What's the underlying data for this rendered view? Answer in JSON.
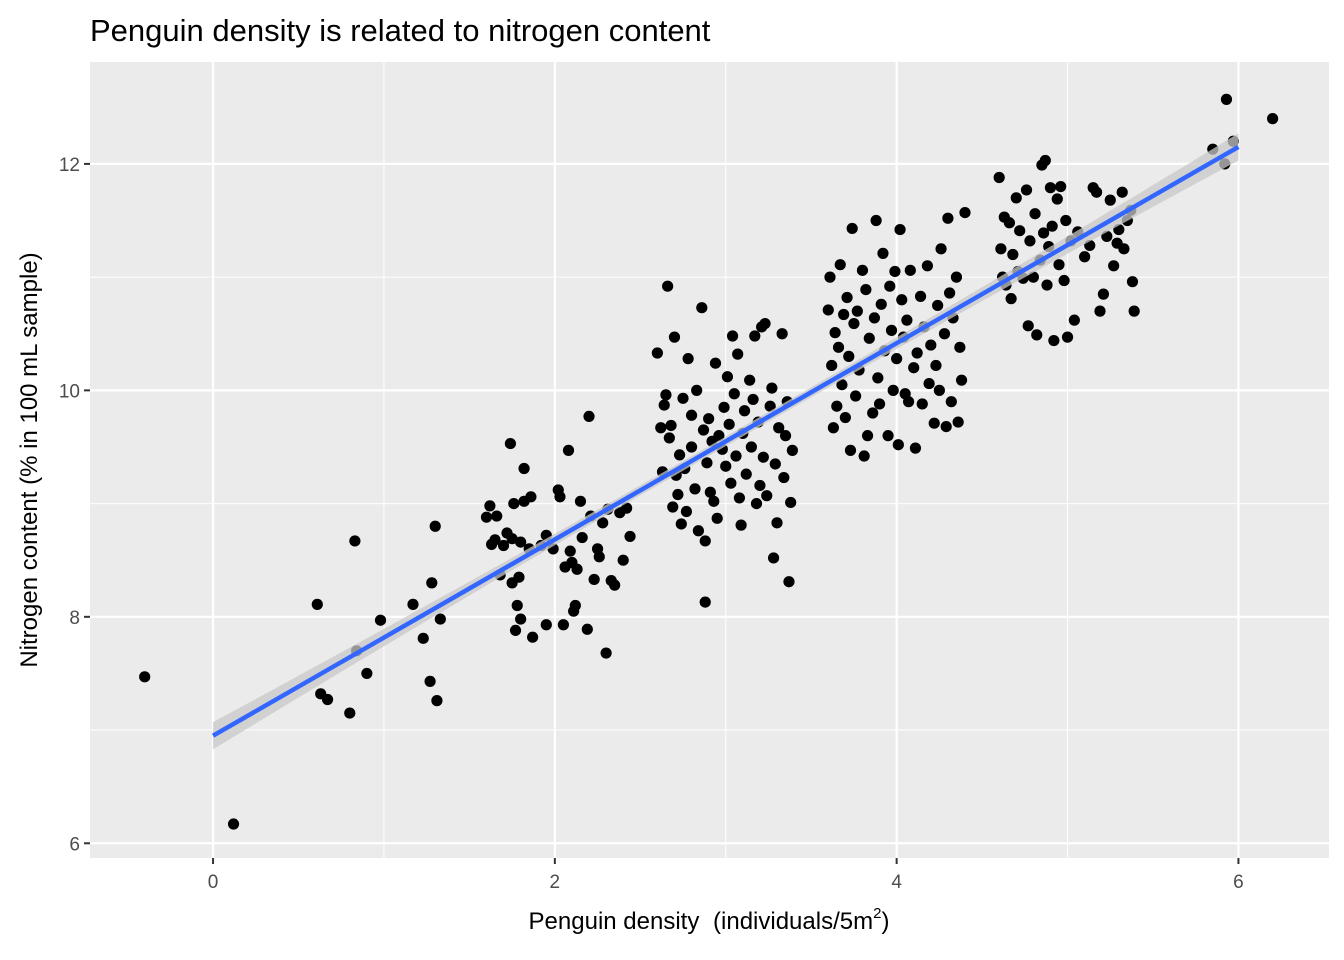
{
  "chart_data": {
    "type": "scatter",
    "title": "Penguin density is related to nitrogen content",
    "xlabel": "Penguin density",
    "xlabel_unit": "(individuals/5m",
    "xlabel_sup": "2",
    "xlabel_close": ")",
    "ylabel": "Nitrogen content (% in 100 mL sample)",
    "xlim": [
      -0.72,
      6.53
    ],
    "ylim": [
      5.87,
      12.9
    ],
    "x_ticks": [
      0,
      2,
      4,
      6
    ],
    "x_tick_labels": [
      "0",
      "2",
      "4",
      "6"
    ],
    "y_ticks": [
      6,
      8,
      10,
      12
    ],
    "y_tick_labels": [
      "6",
      "8",
      "10",
      "12"
    ],
    "grid": true,
    "panel_color": "#ebebeb",
    "point_color": "#000000",
    "line_color": "#3366ff",
    "ribbon_color": "#c8c8c8",
    "fit_line": {
      "method": "linear",
      "x": [
        0,
        6
      ],
      "y": [
        6.95,
        12.15
      ],
      "ci_halfwidth": 0.12
    },
    "series": [
      {
        "values": [
          [
            -0.4,
            7.47
          ],
          [
            0.12,
            6.17
          ],
          [
            0.61,
            8.11
          ],
          [
            0.63,
            7.32
          ],
          [
            0.67,
            7.27
          ],
          [
            0.8,
            7.15
          ],
          [
            0.83,
            8.67
          ],
          [
            0.84,
            7.7
          ],
          [
            0.9,
            7.5
          ],
          [
            0.98,
            7.97
          ],
          [
            1.17,
            8.11
          ],
          [
            1.23,
            7.81
          ],
          [
            1.27,
            7.43
          ],
          [
            1.28,
            8.3
          ],
          [
            1.3,
            8.8
          ],
          [
            1.31,
            7.26
          ],
          [
            1.33,
            7.98
          ],
          [
            1.6,
            8.88
          ],
          [
            1.62,
            8.98
          ],
          [
            1.63,
            8.64
          ],
          [
            1.65,
            8.68
          ],
          [
            1.66,
            8.89
          ],
          [
            1.68,
            8.37
          ],
          [
            1.7,
            8.63
          ],
          [
            1.72,
            8.74
          ],
          [
            1.74,
            9.53
          ],
          [
            1.75,
            8.69
          ],
          [
            1.75,
            8.3
          ],
          [
            1.76,
            9.0
          ],
          [
            1.77,
            7.88
          ],
          [
            1.78,
            8.1
          ],
          [
            1.79,
            8.35
          ],
          [
            1.8,
            8.66
          ],
          [
            1.8,
            7.98
          ],
          [
            1.82,
            9.31
          ],
          [
            1.82,
            9.02
          ],
          [
            1.85,
            8.6
          ],
          [
            1.86,
            9.06
          ],
          [
            1.87,
            7.82
          ],
          [
            1.92,
            8.63
          ],
          [
            1.95,
            7.93
          ],
          [
            1.95,
            8.72
          ],
          [
            1.99,
            8.6
          ],
          [
            2.02,
            9.12
          ],
          [
            2.03,
            9.06
          ],
          [
            2.05,
            7.93
          ],
          [
            2.06,
            8.44
          ],
          [
            2.08,
            9.47
          ],
          [
            2.09,
            8.58
          ],
          [
            2.1,
            8.48
          ],
          [
            2.11,
            8.05
          ],
          [
            2.12,
            8.1
          ],
          [
            2.13,
            8.42
          ],
          [
            2.15,
            9.02
          ],
          [
            2.16,
            8.7
          ],
          [
            2.19,
            7.89
          ],
          [
            2.2,
            9.77
          ],
          [
            2.21,
            8.89
          ],
          [
            2.23,
            8.33
          ],
          [
            2.25,
            8.6
          ],
          [
            2.26,
            8.53
          ],
          [
            2.28,
            8.83
          ],
          [
            2.3,
            7.68
          ],
          [
            2.31,
            8.95
          ],
          [
            2.33,
            8.32
          ],
          [
            2.35,
            8.28
          ],
          [
            2.38,
            8.92
          ],
          [
            2.4,
            8.5
          ],
          [
            2.42,
            8.96
          ],
          [
            2.44,
            8.71
          ],
          [
            2.6,
            10.33
          ],
          [
            2.62,
            9.67
          ],
          [
            2.63,
            9.28
          ],
          [
            2.64,
            9.87
          ],
          [
            2.65,
            9.96
          ],
          [
            2.66,
            10.92
          ],
          [
            2.67,
            9.58
          ],
          [
            2.68,
            9.69
          ],
          [
            2.69,
            8.97
          ],
          [
            2.7,
            10.47
          ],
          [
            2.71,
            9.25
          ],
          [
            2.72,
            9.08
          ],
          [
            2.73,
            9.43
          ],
          [
            2.74,
            8.82
          ],
          [
            2.75,
            9.93
          ],
          [
            2.76,
            9.31
          ],
          [
            2.77,
            8.93
          ],
          [
            2.78,
            10.28
          ],
          [
            2.8,
            9.5
          ],
          [
            2.8,
            9.78
          ],
          [
            2.82,
            9.13
          ],
          [
            2.83,
            10.0
          ],
          [
            2.84,
            8.76
          ],
          [
            2.86,
            10.73
          ],
          [
            2.87,
            9.65
          ],
          [
            2.88,
            8.67
          ],
          [
            2.88,
            8.13
          ],
          [
            2.89,
            9.36
          ],
          [
            2.9,
            9.75
          ],
          [
            2.91,
            9.1
          ],
          [
            2.92,
            9.55
          ],
          [
            2.93,
            9.02
          ],
          [
            2.94,
            10.24
          ],
          [
            2.95,
            8.87
          ],
          [
            2.96,
            9.6
          ],
          [
            2.98,
            9.48
          ],
          [
            2.99,
            9.85
          ],
          [
            3.0,
            9.33
          ],
          [
            3.01,
            10.12
          ],
          [
            3.02,
            9.7
          ],
          [
            3.03,
            9.18
          ],
          [
            3.04,
            10.48
          ],
          [
            3.05,
            9.97
          ],
          [
            3.06,
            9.42
          ],
          [
            3.07,
            10.32
          ],
          [
            3.08,
            9.05
          ],
          [
            3.09,
            8.81
          ],
          [
            3.1,
            9.62
          ],
          [
            3.11,
            9.82
          ],
          [
            3.12,
            9.26
          ],
          [
            3.14,
            10.09
          ],
          [
            3.15,
            9.5
          ],
          [
            3.16,
            9.92
          ],
          [
            3.17,
            10.48
          ],
          [
            3.18,
            9.0
          ],
          [
            3.19,
            9.72
          ],
          [
            3.2,
            9.16
          ],
          [
            3.21,
            10.56
          ],
          [
            3.22,
            9.41
          ],
          [
            3.23,
            10.59
          ],
          [
            3.24,
            9.07
          ],
          [
            3.26,
            9.86
          ],
          [
            3.27,
            10.02
          ],
          [
            3.28,
            8.52
          ],
          [
            3.29,
            9.35
          ],
          [
            3.3,
            8.83
          ],
          [
            3.31,
            9.67
          ],
          [
            3.33,
            10.5
          ],
          [
            3.34,
            9.23
          ],
          [
            3.35,
            9.6
          ],
          [
            3.36,
            9.9
          ],
          [
            3.37,
            8.31
          ],
          [
            3.38,
            9.01
          ],
          [
            3.39,
            9.47
          ],
          [
            3.6,
            10.71
          ],
          [
            3.61,
            11.0
          ],
          [
            3.62,
            10.22
          ],
          [
            3.63,
            9.67
          ],
          [
            3.64,
            10.51
          ],
          [
            3.65,
            9.86
          ],
          [
            3.66,
            10.38
          ],
          [
            3.67,
            11.11
          ],
          [
            3.68,
            10.05
          ],
          [
            3.69,
            10.67
          ],
          [
            3.7,
            9.76
          ],
          [
            3.71,
            10.82
          ],
          [
            3.72,
            10.3
          ],
          [
            3.73,
            9.47
          ],
          [
            3.74,
            11.43
          ],
          [
            3.75,
            10.59
          ],
          [
            3.76,
            9.95
          ],
          [
            3.77,
            10.7
          ],
          [
            3.78,
            10.18
          ],
          [
            3.8,
            11.06
          ],
          [
            3.81,
            9.42
          ],
          [
            3.82,
            10.89
          ],
          [
            3.83,
            9.6
          ],
          [
            3.84,
            10.46
          ],
          [
            3.86,
            9.8
          ],
          [
            3.87,
            10.64
          ],
          [
            3.88,
            11.5
          ],
          [
            3.89,
            10.11
          ],
          [
            3.9,
            9.88
          ],
          [
            3.91,
            10.76
          ],
          [
            3.92,
            11.21
          ],
          [
            3.93,
            10.35
          ],
          [
            3.95,
            9.6
          ],
          [
            3.96,
            10.92
          ],
          [
            3.97,
            10.53
          ],
          [
            3.98,
            10.0
          ],
          [
            3.99,
            11.05
          ],
          [
            4.0,
            10.28
          ],
          [
            4.01,
            9.52
          ],
          [
            4.02,
            11.42
          ],
          [
            4.03,
            10.8
          ],
          [
            4.04,
            10.47
          ],
          [
            4.05,
            9.97
          ],
          [
            4.06,
            10.62
          ],
          [
            4.07,
            9.9
          ],
          [
            4.08,
            11.06
          ],
          [
            4.1,
            10.2
          ],
          [
            4.11,
            9.49
          ],
          [
            4.12,
            10.33
          ],
          [
            4.14,
            10.83
          ],
          [
            4.15,
            9.88
          ],
          [
            4.16,
            10.56
          ],
          [
            4.18,
            11.1
          ],
          [
            4.19,
            10.06
          ],
          [
            4.2,
            10.4
          ],
          [
            4.22,
            9.71
          ],
          [
            4.23,
            10.22
          ],
          [
            4.24,
            10.75
          ],
          [
            4.25,
            10.0
          ],
          [
            4.26,
            11.25
          ],
          [
            4.28,
            10.5
          ],
          [
            4.29,
            9.68
          ],
          [
            4.3,
            11.52
          ],
          [
            4.31,
            10.86
          ],
          [
            4.32,
            9.9
          ],
          [
            4.33,
            10.64
          ],
          [
            4.35,
            11.0
          ],
          [
            4.36,
            9.72
          ],
          [
            4.37,
            10.38
          ],
          [
            4.38,
            10.09
          ],
          [
            4.4,
            11.57
          ],
          [
            4.6,
            11.88
          ],
          [
            4.61,
            11.25
          ],
          [
            4.62,
            11.0
          ],
          [
            4.63,
            11.53
          ],
          [
            4.64,
            10.93
          ],
          [
            4.66,
            11.48
          ],
          [
            4.67,
            10.81
          ],
          [
            4.68,
            11.2
          ],
          [
            4.7,
            11.7
          ],
          [
            4.71,
            11.05
          ],
          [
            4.72,
            11.41
          ],
          [
            4.74,
            10.99
          ],
          [
            4.76,
            11.77
          ],
          [
            4.77,
            10.57
          ],
          [
            4.78,
            11.32
          ],
          [
            4.8,
            11.0
          ],
          [
            4.81,
            11.56
          ],
          [
            4.82,
            10.49
          ],
          [
            4.84,
            11.15
          ],
          [
            4.85,
            11.99
          ],
          [
            4.86,
            11.39
          ],
          [
            4.87,
            12.03
          ],
          [
            4.88,
            10.93
          ],
          [
            4.89,
            11.27
          ],
          [
            4.9,
            11.79
          ],
          [
            4.91,
            11.45
          ],
          [
            4.92,
            10.44
          ],
          [
            4.94,
            11.69
          ],
          [
            4.95,
            11.11
          ],
          [
            4.96,
            11.8
          ],
          [
            4.98,
            10.97
          ],
          [
            4.99,
            11.5
          ],
          [
            5.0,
            10.47
          ],
          [
            5.02,
            11.32
          ],
          [
            5.04,
            10.62
          ],
          [
            5.06,
            11.4
          ],
          [
            5.1,
            11.18
          ],
          [
            5.13,
            11.28
          ],
          [
            5.15,
            11.79
          ],
          [
            5.17,
            11.75
          ],
          [
            5.19,
            10.7
          ],
          [
            5.21,
            10.85
          ],
          [
            5.23,
            11.36
          ],
          [
            5.25,
            11.68
          ],
          [
            5.27,
            11.1
          ],
          [
            5.29,
            11.3
          ],
          [
            5.3,
            11.42
          ],
          [
            5.32,
            11.75
          ],
          [
            5.33,
            11.25
          ],
          [
            5.35,
            11.5
          ],
          [
            5.37,
            11.59
          ],
          [
            5.38,
            10.96
          ],
          [
            5.39,
            10.7
          ],
          [
            5.85,
            12.13
          ],
          [
            5.92,
            12.0
          ],
          [
            5.93,
            12.57
          ],
          [
            5.97,
            12.2
          ],
          [
            6.2,
            12.4
          ]
        ]
      }
    ]
  }
}
